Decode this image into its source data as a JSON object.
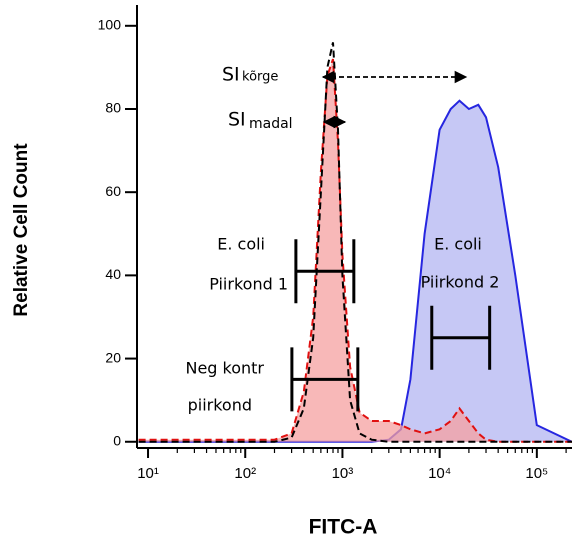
{
  "chart_data": {
    "type": "histogram-overlay",
    "x_label": "FITC-A",
    "y_label": "Relative Cell Count",
    "x_log": true,
    "xlim": [
      7.7,
      230000
    ],
    "ylim": [
      -1.5,
      105
    ],
    "xticks": [
      {
        "value": 10,
        "label": "10¹"
      },
      {
        "value": 100,
        "label": "10²"
      },
      {
        "value": 1000,
        "label": "10³"
      },
      {
        "value": 10000,
        "label": "10⁴"
      },
      {
        "value": 100000,
        "label": "10⁵"
      }
    ],
    "yticks": [
      0,
      20,
      40,
      60,
      80,
      100
    ],
    "x": [
      8,
      20,
      50,
      100,
      200,
      300,
      400,
      500,
      600,
      700,
      800,
      900,
      1000,
      1200,
      1500,
      2000,
      3000,
      4000,
      5000,
      7000,
      10000,
      13000,
      16000,
      20000,
      25000,
      30000,
      40000,
      60000,
      100000,
      230000
    ],
    "series": [
      {
        "color": "#2626e0",
        "fill_color": "#b3b6f2",
        "dashed": false,
        "values": [
          0,
          0,
          0,
          0,
          0,
          0,
          0,
          0,
          0,
          0,
          0,
          0,
          0,
          0,
          0,
          0,
          0.5,
          3,
          15,
          50,
          75,
          80,
          82,
          80,
          81,
          78,
          66,
          40,
          4,
          0
        ]
      },
      {
        "color": "#e01010",
        "fill_color": "#f5a0a0",
        "dashed": true,
        "values": [
          0.5,
          0.5,
          0.5,
          0.5,
          0.5,
          2,
          12,
          30,
          65,
          88,
          92,
          72,
          45,
          18,
          7,
          5,
          5,
          4,
          3,
          2,
          3,
          5,
          8,
          5,
          2,
          0.5,
          0,
          0,
          0,
          0
        ]
      },
      {
        "color": "#000000",
        "fill_color": null,
        "dashed": true,
        "values": [
          0,
          0,
          0,
          0,
          0,
          1,
          8,
          25,
          60,
          90,
          96,
          75,
          40,
          10,
          2,
          0.5,
          0,
          0,
          0,
          0,
          0,
          0,
          0,
          0,
          0,
          0,
          0,
          0,
          0,
          0
        ]
      }
    ],
    "gates": [
      {
        "label": [
          "E. coli",
          "Piirkond 1"
        ],
        "x": [
          332,
          1310
        ],
        "y": 41
      },
      {
        "label": [
          "Neg kontr",
          "piirkond"
        ],
        "x": [
          302,
          1440
        ],
        "y": 15
      },
      {
        "label": [
          "E. coli",
          "Piirkond 2"
        ],
        "x": [
          8300,
          32700
        ],
        "y": 25
      }
    ],
    "annotations": [
      {
        "text": "SI",
        "sub": "kõrge"
      },
      {
        "text": "SI",
        "sub": "madal"
      }
    ]
  }
}
